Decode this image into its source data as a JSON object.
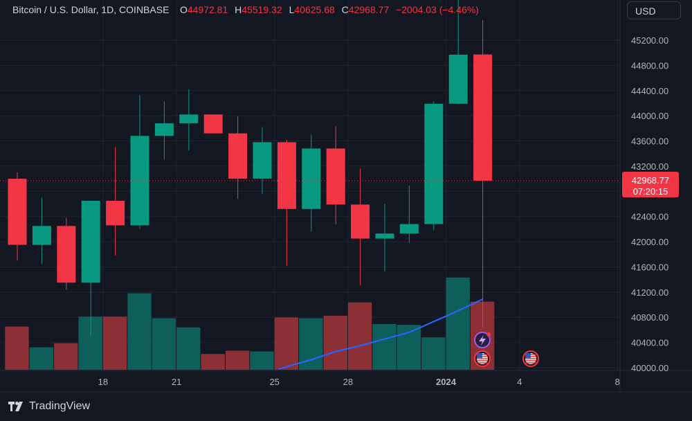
{
  "legend": {
    "symbol": "Bitcoin / U.S. Dollar, 1D, COINBASE",
    "o_label": "O",
    "o_value": "44972.81",
    "h_label": "H",
    "h_value": "45519.32",
    "l_label": "L",
    "l_value": "40625.68",
    "c_label": "C",
    "c_value": "42968.77",
    "change": "−2004.03 (−4.46%)"
  },
  "currency_button": "USD",
  "brand": "TradingView",
  "last_price": {
    "value": "42968.77",
    "countdown": "07:20:15"
  },
  "colors": {
    "up": "#089981",
    "down": "#f23645",
    "vol_up": "#0e5f5a",
    "vol_down": "#8c3035",
    "ma": "#2962ff",
    "bg": "#131722"
  },
  "chart_data": {
    "type": "candlestick",
    "x": [
      "Dec 15",
      "Dec 16",
      "Dec 17",
      "Dec 18",
      "Dec 19",
      "Dec 20",
      "Dec 21",
      "Dec 22",
      "Dec 23",
      "Dec 24",
      "Dec 25",
      "Dec 26",
      "Dec 27",
      "Dec 28",
      "Dec 29",
      "Dec 30",
      "Dec 31",
      "Jan 1",
      "Jan 2",
      "Jan 3"
    ],
    "series": [
      {
        "open": 43000,
        "high": 43100,
        "low": 41700,
        "close": 41950
      },
      {
        "open": 41950,
        "high": 42700,
        "low": 41650,
        "close": 42250
      },
      {
        "open": 42250,
        "high": 42380,
        "low": 41240,
        "close": 41350
      },
      {
        "open": 41350,
        "high": 42650,
        "low": 40500,
        "close": 42650
      },
      {
        "open": 42650,
        "high": 43500,
        "low": 41780,
        "close": 42260
      },
      {
        "open": 42260,
        "high": 44330,
        "low": 42200,
        "close": 43680
      },
      {
        "open": 43680,
        "high": 44230,
        "low": 43300,
        "close": 43880
      },
      {
        "open": 43880,
        "high": 44420,
        "low": 43450,
        "close": 44020
      },
      {
        "open": 44020,
        "high": 44020,
        "low": 43730,
        "close": 43720
      },
      {
        "open": 43720,
        "high": 43990,
        "low": 42680,
        "close": 43000
      },
      {
        "open": 43000,
        "high": 43820,
        "low": 42760,
        "close": 43580
      },
      {
        "open": 43580,
        "high": 43620,
        "low": 41620,
        "close": 42520
      },
      {
        "open": 42520,
        "high": 43700,
        "low": 42160,
        "close": 43480
      },
      {
        "open": 43480,
        "high": 43830,
        "low": 42280,
        "close": 42590
      },
      {
        "open": 42590,
        "high": 43160,
        "low": 41310,
        "close": 42050
      },
      {
        "open": 42050,
        "high": 42600,
        "low": 41530,
        "close": 42130
      },
      {
        "open": 42130,
        "high": 42890,
        "low": 41980,
        "close": 42280
      },
      {
        "open": 42280,
        "high": 44230,
        "low": 42180,
        "close": 44190
      },
      {
        "open": 44190,
        "high": 45900,
        "low": 44180,
        "close": 44970
      },
      {
        "open": 44972.81,
        "high": 45519.32,
        "low": 40625.68,
        "close": 42968.77
      }
    ],
    "volume": [
      0.52,
      0.27,
      0.32,
      0.64,
      0.64,
      0.92,
      0.62,
      0.51,
      0.19,
      0.23,
      0.22,
      0.63,
      0.62,
      0.65,
      0.81,
      0.55,
      0.54,
      0.39,
      1.11,
      0.82
    ],
    "volume_ma": [
      null,
      null,
      null,
      null,
      null,
      null,
      null,
      null,
      null,
      null,
      null,
      0.0,
      0.12,
      0.22,
      0.29,
      0.37,
      0.45,
      0.58,
      0.71,
      0.85
    ],
    "y_ticks": [
      "45200.00",
      "44800.00",
      "44400.00",
      "44000.00",
      "43600.00",
      "43200.00",
      "42800.00",
      "42400.00",
      "42000.00",
      "41600.00",
      "41200.00",
      "40800.00",
      "40400.00",
      "40000.00"
    ],
    "x_ticks": [
      {
        "label": "18",
        "at": 3.5
      },
      {
        "label": "21",
        "at": 6.5
      },
      {
        "label": "25",
        "at": 10.5
      },
      {
        "label": "28",
        "at": 13.5
      },
      {
        "label": "2024",
        "at": 17.5,
        "bold": true
      },
      {
        "label": "4",
        "at": 20.5
      },
      {
        "label": "8",
        "at": 24.5
      }
    ],
    "ylim": [
      40000,
      45600
    ],
    "grid": true,
    "event_icons": [
      "lightning-event-icon",
      "us-flag-event-icon",
      "us-flag-event-icon"
    ]
  }
}
